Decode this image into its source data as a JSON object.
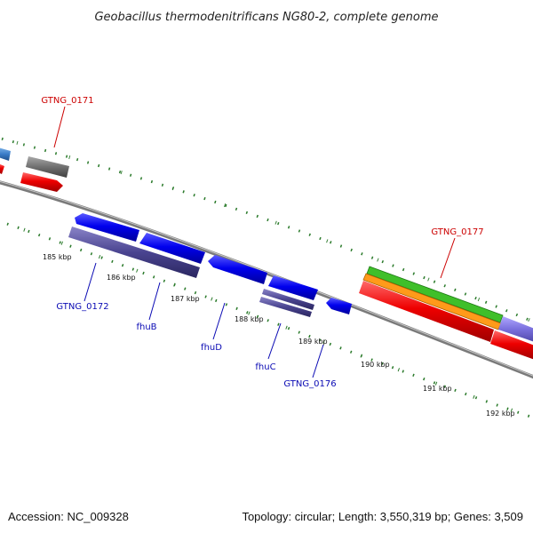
{
  "title": "Geobacillus thermodenitrificans NG80-2, complete genome",
  "footer": {
    "accession": "Accession: NC_009328",
    "summary": "Topology: circular; Length: 3,550,319 bp; Genes: 3,509"
  },
  "colors": {
    "forward_strand_label": "#cc0000",
    "reverse_strand_label": "#0a0ab4",
    "tick": "#2a7a2a",
    "backbone": "#7a7a7a"
  },
  "ruler": {
    "labels": [
      "185 kbp",
      "186 kbp",
      "187 kbp",
      "188 kbp",
      "189 kbp",
      "190 kbp",
      "191 kbp",
      "192 kbp"
    ]
  },
  "gene_labels": {
    "gtng_0171": "GTNG_0171",
    "gtng_0177": "GTNG_0177",
    "gtng_0172": "GTNG_0172",
    "fhub": "fhuB",
    "fhud": "fhuD",
    "fhuc": "fhuC",
    "gtng_0176": "GTNG_0176"
  }
}
